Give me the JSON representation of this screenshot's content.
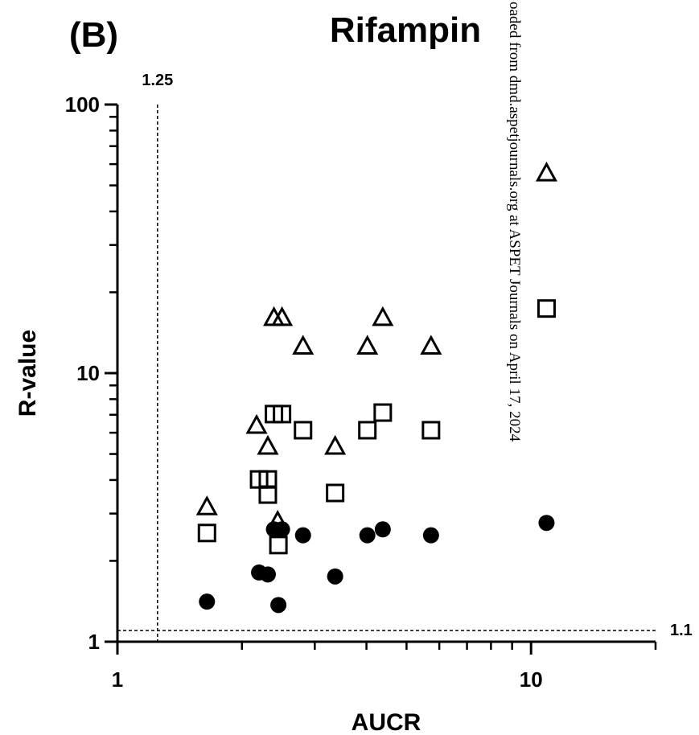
{
  "chart_data": {
    "type": "scatter",
    "panel_label": "(B)",
    "title": "Rifampin",
    "x_label": "AUCR",
    "y_label": "R-value",
    "watermark": "oaded from dmd.aspetjournals.org at ASPET Journals on April 17, 2024",
    "xscale": "log",
    "yscale": "log",
    "xlim": [
      1,
      20
    ],
    "ylim": [
      1,
      100
    ],
    "xticks": [
      1,
      10
    ],
    "yticks": [
      1,
      10,
      100
    ],
    "xminor_ticks": [
      2,
      3,
      4,
      5,
      6,
      7,
      8,
      9,
      20
    ],
    "yminor_ticks": [
      2,
      3,
      4,
      5,
      6,
      7,
      8,
      9,
      20,
      30,
      40,
      50,
      60,
      70,
      80,
      90
    ],
    "reference_lines": [
      {
        "axis": "x",
        "value": 1.25,
        "label": "1.25"
      },
      {
        "axis": "y",
        "value": 1.1,
        "label": "1.1"
      }
    ],
    "series": [
      {
        "marker": "triangle",
        "color": "#000000",
        "filled": false,
        "x": [
          1.646,
          2.39,
          2.5,
          2.81,
          2.17,
          2.31,
          2.44,
          3.36,
          4.02,
          4.38,
          5.73,
          10.9
        ],
        "values": [
          3.18,
          16.1,
          16.1,
          12.6,
          6.39,
          5.34,
          2.81,
          5.34,
          12.6,
          16.1,
          12.6,
          55.6
        ]
      },
      {
        "marker": "square",
        "color": "#000000",
        "filled": false,
        "x": [
          1.646,
          2.2,
          2.31,
          2.31,
          2.39,
          2.5,
          2.81,
          2.45,
          3.36,
          4.02,
          4.38,
          5.73,
          10.9
        ],
        "values": [
          2.54,
          4.02,
          4.02,
          3.53,
          7.04,
          7.04,
          6.13,
          2.29,
          3.58,
          6.13,
          7.13,
          6.13,
          17.4
        ]
      },
      {
        "marker": "circle",
        "color": "#000000",
        "filled": true,
        "x": [
          1.646,
          2.2,
          2.31,
          2.39,
          2.5,
          2.45,
          2.81,
          3.36,
          4.02,
          4.38,
          5.73,
          10.9
        ],
        "values": [
          1.41,
          1.81,
          1.78,
          2.62,
          2.62,
          1.37,
          2.49,
          1.75,
          2.49,
          2.62,
          2.49,
          2.77
        ]
      }
    ]
  }
}
